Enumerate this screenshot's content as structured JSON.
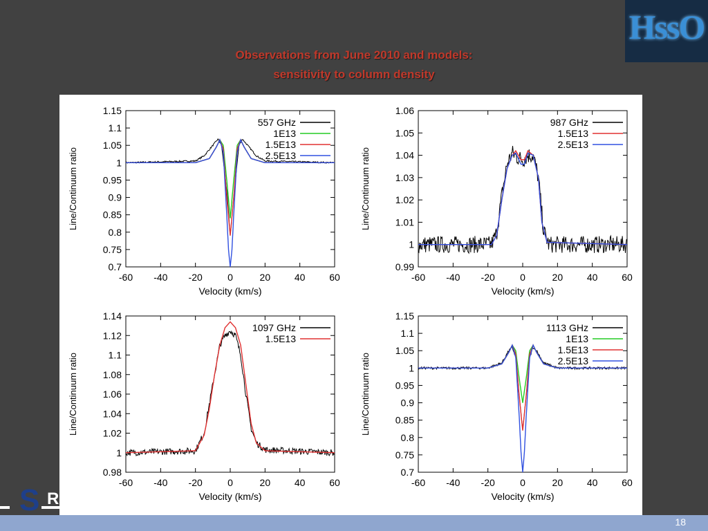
{
  "slide": {
    "title_line1": "Observations from June 2010 and models:",
    "title_line2": "sensitivity to column density",
    "logo_text": "HssO",
    "number": "18",
    "footer_logo_letter": "S",
    "footer_logo_tail": "R",
    "colors": {
      "background": "#414141",
      "title": "#c0392b",
      "footer": "#8fa6cf"
    }
  },
  "chart_data": [
    {
      "type": "line",
      "xlabel": "Velocity (km/s)",
      "ylabel": "Line/Continuum ratio",
      "xlim": [
        -60,
        60
      ],
      "ylim": [
        0.7,
        1.15
      ],
      "xticks": [
        -60,
        -40,
        -20,
        0,
        20,
        40,
        60
      ],
      "xtick_labels": [
        "-60",
        "-40",
        "-20",
        "0",
        "20",
        "40",
        "60"
      ],
      "yticks": [
        0.7,
        0.75,
        0.8,
        0.85,
        0.9,
        0.95,
        1,
        1.05,
        1.1,
        1.15
      ],
      "ytick_labels": [
        "0.7",
        "0.75",
        "0.8",
        "0.85",
        "0.9",
        "0.95",
        "1",
        "1.05",
        "1.1",
        "1.15"
      ],
      "legend_position": "top-right",
      "series": [
        {
          "name": "557 GHz",
          "color": "#000000",
          "kind": "observed",
          "x": [
            -60,
            -20,
            -15,
            -10,
            -7,
            -5,
            -2,
            0,
            2,
            5,
            7,
            10,
            15,
            20,
            60
          ],
          "y": [
            1.0,
            1.005,
            1.02,
            1.05,
            1.068,
            1.05,
            0.92,
            0.79,
            0.9,
            1.05,
            1.068,
            1.05,
            1.02,
            1.005,
            1.0
          ],
          "noise": 0.002
        },
        {
          "name": "1E13",
          "color": "#22cc22",
          "kind": "model",
          "x": [
            -60,
            -20,
            -12,
            -8,
            -6,
            -4,
            -2,
            0,
            2,
            4,
            6,
            8,
            12,
            20,
            60
          ],
          "y": [
            1.0,
            1.0,
            1.012,
            1.045,
            1.066,
            1.05,
            0.95,
            0.84,
            0.95,
            1.05,
            1.066,
            1.045,
            1.012,
            1.0,
            1.0
          ]
        },
        {
          "name": "1.5E13",
          "color": "#e03030",
          "kind": "model",
          "x": [
            -60,
            -20,
            -12,
            -8,
            -6,
            -4,
            -2,
            0,
            2,
            4,
            6,
            8,
            12,
            20,
            60
          ],
          "y": [
            1.0,
            1.0,
            1.012,
            1.045,
            1.066,
            1.04,
            0.9,
            0.79,
            0.9,
            1.04,
            1.066,
            1.045,
            1.012,
            1.0,
            1.0
          ]
        },
        {
          "name": "2.5E13",
          "color": "#3050e0",
          "kind": "model",
          "x": [
            -60,
            -20,
            -12,
            -8,
            -6,
            -4,
            -2,
            -1,
            0,
            1,
            2,
            4,
            6,
            8,
            12,
            20,
            60
          ],
          "y": [
            1.0,
            1.0,
            1.012,
            1.045,
            1.066,
            1.03,
            0.85,
            0.75,
            0.7,
            0.75,
            0.85,
            1.03,
            1.066,
            1.045,
            1.012,
            1.0,
            1.0
          ]
        }
      ]
    },
    {
      "type": "line",
      "xlabel": "Velocity (km/s)",
      "ylabel": "Line/Continuum ratio",
      "xlim": [
        -60,
        60
      ],
      "ylim": [
        0.99,
        1.06
      ],
      "xticks": [
        -60,
        -40,
        -20,
        0,
        20,
        40,
        60
      ],
      "xtick_labels": [
        "-60",
        "-40",
        "-20",
        "0",
        "20",
        "40",
        "60"
      ],
      "yticks": [
        0.99,
        1.0,
        1.01,
        1.02,
        1.03,
        1.04,
        1.05,
        1.06
      ],
      "ytick_labels": [
        "0.99",
        "1",
        "1.01",
        "1.02",
        "1.03",
        "1.04",
        "1.05",
        "1.06"
      ],
      "legend_position": "top-right",
      "series": [
        {
          "name": "987 GHz",
          "color": "#000000",
          "kind": "observed",
          "x": [
            -60,
            -18,
            -15,
            -12,
            -9,
            -6,
            -3,
            0,
            3,
            6,
            9,
            12,
            15,
            60
          ],
          "y": [
            1.0,
            1.0,
            1.005,
            1.022,
            1.036,
            1.041,
            1.039,
            1.038,
            1.04,
            1.04,
            1.03,
            1.006,
            1.0,
            1.0
          ],
          "noise": 0.0035
        },
        {
          "name": "1.5E13",
          "color": "#e03030",
          "kind": "model",
          "x": [
            -60,
            -18,
            -15,
            -12,
            -9,
            -6,
            -4,
            -1,
            1,
            3,
            6,
            9,
            11,
            14,
            60
          ],
          "y": [
            1.0,
            1.0,
            1.004,
            1.02,
            1.034,
            1.04,
            1.042,
            1.038,
            1.038,
            1.042,
            1.04,
            1.03,
            1.01,
            1.001,
            1.0
          ]
        },
        {
          "name": "2.5E13",
          "color": "#3050e0",
          "kind": "model",
          "x": [
            -60,
            -18,
            -15,
            -12,
            -9,
            -6,
            -4,
            -1,
            1,
            3,
            6,
            9,
            11,
            14,
            60
          ],
          "y": [
            1.0,
            1.0,
            1.004,
            1.02,
            1.034,
            1.04,
            1.041,
            1.036,
            1.036,
            1.041,
            1.04,
            1.03,
            1.01,
            1.001,
            1.0
          ]
        }
      ]
    },
    {
      "type": "line",
      "xlabel": "Velocity (km/s)",
      "ylabel": "Line/Continuum ratio",
      "xlim": [
        -60,
        60
      ],
      "ylim": [
        0.98,
        1.14
      ],
      "xticks": [
        -60,
        -40,
        -20,
        0,
        20,
        40,
        60
      ],
      "xtick_labels": [
        "-60",
        "-40",
        "-20",
        "0",
        "20",
        "40",
        "60"
      ],
      "yticks": [
        0.98,
        1.0,
        1.02,
        1.04,
        1.06,
        1.08,
        1.1,
        1.12,
        1.14
      ],
      "ytick_labels": [
        "0.98",
        "1",
        "1.02",
        "1.04",
        "1.06",
        "1.08",
        "1.1",
        "1.12",
        "1.14"
      ],
      "legend_position": "top-right",
      "series": [
        {
          "name": "1097 GHz",
          "color": "#000000",
          "kind": "observed",
          "x": [
            -60,
            -20,
            -15,
            -12,
            -9,
            -6,
            -3,
            0,
            3,
            6,
            9,
            12,
            15,
            20,
            60
          ],
          "y": [
            1.0,
            1.002,
            1.02,
            1.05,
            1.08,
            1.11,
            1.12,
            1.125,
            1.12,
            1.1,
            1.06,
            1.025,
            1.01,
            1.003,
            1.0
          ],
          "noise": 0.003
        },
        {
          "name": "1.5E13",
          "color": "#e03030",
          "kind": "model",
          "x": [
            -60,
            -20,
            -15,
            -12,
            -9,
            -6,
            -3,
            0,
            3,
            6,
            9,
            12,
            15,
            20,
            60
          ],
          "y": [
            1.0,
            1.002,
            1.018,
            1.045,
            1.08,
            1.11,
            1.128,
            1.134,
            1.128,
            1.11,
            1.07,
            1.03,
            1.01,
            1.002,
            1.0
          ]
        }
      ]
    },
    {
      "type": "line",
      "xlabel": "Velocity (km/s)",
      "ylabel": "Line/Continuum ratio",
      "xlim": [
        -60,
        60
      ],
      "ylim": [
        0.7,
        1.15
      ],
      "xticks": [
        -60,
        -40,
        -20,
        0,
        20,
        40,
        60
      ],
      "xtick_labels": [
        "-60",
        "-40",
        "-20",
        "0",
        "20",
        "40",
        "60"
      ],
      "yticks": [
        0.7,
        0.75,
        0.8,
        0.85,
        0.9,
        0.95,
        1,
        1.05,
        1.1,
        1.15
      ],
      "ytick_labels": [
        "0.7",
        "0.75",
        "0.8",
        "0.85",
        "0.9",
        "0.95",
        "1",
        "1.05",
        "1.1",
        "1.15"
      ],
      "legend_position": "top-right",
      "series": [
        {
          "name": "1113 GHz",
          "color": "#000000",
          "kind": "observed",
          "x": [
            -60,
            -20,
            -12,
            -8,
            -6,
            -4,
            -2,
            0,
            2,
            4,
            6,
            8,
            12,
            20,
            60
          ],
          "y": [
            1.0,
            1.0,
            1.015,
            1.05,
            1.06,
            1.03,
            0.92,
            0.82,
            0.92,
            1.03,
            1.06,
            1.05,
            1.015,
            1.0,
            1.0
          ],
          "noise": 0.003
        },
        {
          "name": "1E13",
          "color": "#22cc22",
          "kind": "model",
          "x": [
            -60,
            -20,
            -12,
            -8,
            -6,
            -4,
            -2,
            0,
            2,
            4,
            6,
            8,
            12,
            20,
            60
          ],
          "y": [
            1.0,
            1.0,
            1.012,
            1.045,
            1.066,
            1.05,
            0.97,
            0.9,
            0.97,
            1.05,
            1.066,
            1.045,
            1.012,
            1.0,
            1.0
          ]
        },
        {
          "name": "1.5E13",
          "color": "#e03030",
          "kind": "model",
          "x": [
            -60,
            -20,
            -12,
            -8,
            -6,
            -4,
            -2,
            0,
            2,
            4,
            6,
            8,
            12,
            20,
            60
          ],
          "y": [
            1.0,
            1.0,
            1.012,
            1.045,
            1.066,
            1.04,
            0.92,
            0.82,
            0.92,
            1.04,
            1.066,
            1.045,
            1.012,
            1.0,
            1.0
          ]
        },
        {
          "name": "2.5E13",
          "color": "#3050e0",
          "kind": "model",
          "x": [
            -60,
            -20,
            -12,
            -8,
            -6,
            -4,
            -2,
            -1,
            0,
            1,
            2,
            4,
            6,
            8,
            12,
            20,
            60
          ],
          "y": [
            1.0,
            1.0,
            1.012,
            1.045,
            1.066,
            1.03,
            0.86,
            0.76,
            0.7,
            0.76,
            0.86,
            1.03,
            1.066,
            1.045,
            1.012,
            1.0,
            1.0
          ]
        }
      ]
    }
  ]
}
